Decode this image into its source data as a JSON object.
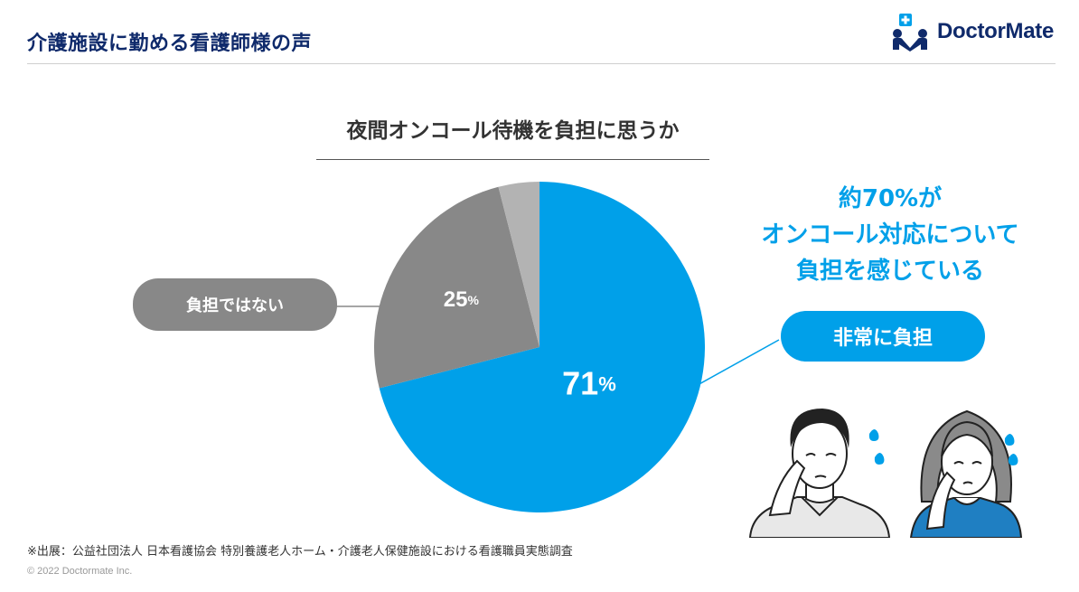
{
  "header": {
    "title": "介護施設に勤める看護師様の声",
    "logo_text": "DoctorMate"
  },
  "chart_data": {
    "type": "pie",
    "title": "夜間オンコール待機を負担に思うか",
    "slices": [
      {
        "label": "非常に負担",
        "value": 71,
        "display": "71%",
        "color": "#00a0e9"
      },
      {
        "label": "負担ではない",
        "value": 25,
        "display": "25%",
        "color": "#888888"
      },
      {
        "label": "",
        "value": 4,
        "display": "",
        "color": "#b3b3b3"
      }
    ],
    "start_angle_deg": 0,
    "direction": "clockwise"
  },
  "callout": {
    "line1": "約70%が",
    "line2": "オンコール対応について",
    "line3": "負担を感じている"
  },
  "labels": {
    "not_burden": "負担ではない",
    "very_burden": "非常に負担"
  },
  "footer": {
    "source": "※出展：公益社団法人 日本看護協会 特別養護老人ホーム・介護老人保健施設における看護職員実態調査",
    "copyright": "© 2022 Doctormate Inc."
  },
  "colors": {
    "brand_navy": "#0f2a6b",
    "accent_blue": "#00a0e9",
    "gray": "#888888",
    "light_gray": "#b3b3b3"
  },
  "icons": [
    "logo-icon",
    "man-crying-icon",
    "woman-crying-icon"
  ]
}
